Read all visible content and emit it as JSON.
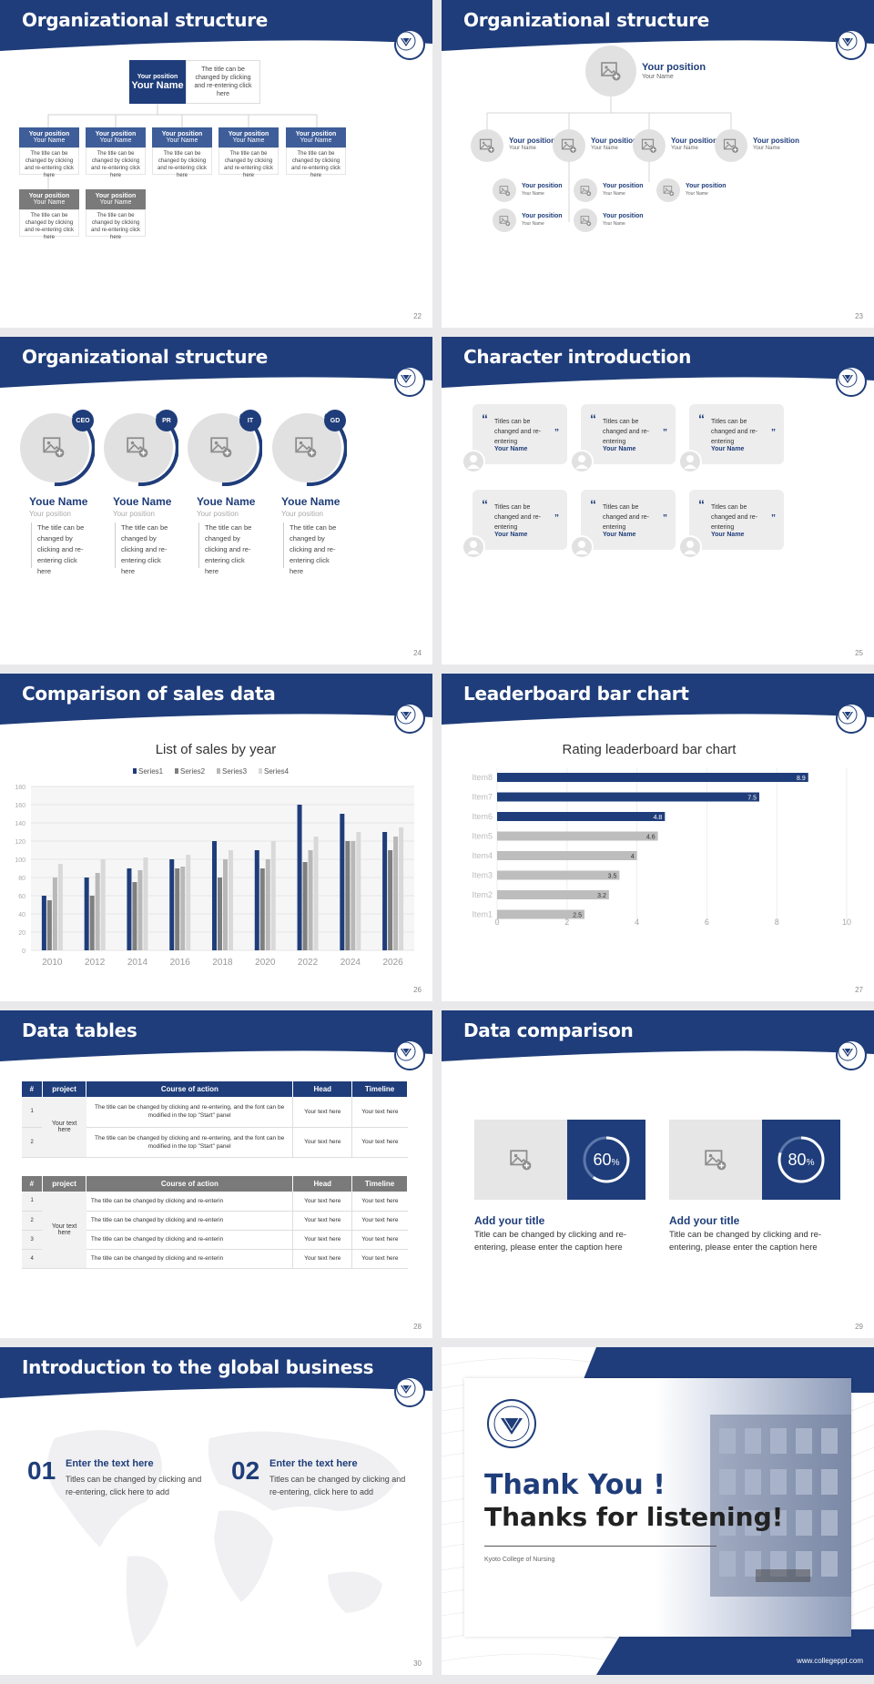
{
  "colors": {
    "navy": "#1f3d7a",
    "gray": "#7a7a7a",
    "light": "#e2e1e1"
  },
  "s22": {
    "title": "Organizational structure",
    "top_position": "Your position",
    "top_name": "Your Name",
    "top_desc": "The title can be changed by clicking and re-entering click here",
    "row1": [
      {
        "pos": "Your position",
        "name": "Your Name"
      },
      {
        "pos": "Your position",
        "name": "Your Name"
      },
      {
        "pos": "Your position",
        "name": "Your Name"
      },
      {
        "pos": "Your position",
        "name": "Your Name"
      },
      {
        "pos": "Your position",
        "name": "Your Name"
      }
    ],
    "row2": [
      {
        "pos": "Your position",
        "name": "Your Name"
      },
      {
        "pos": "Your position",
        "name": "Your Name"
      }
    ],
    "desc": "The title can be changed by clicking and re-entering click here",
    "page": "22"
  },
  "s23": {
    "title": "Organizational structure",
    "top_position": "Your position",
    "top_name": "Your Name",
    "mid": [
      {
        "pos": "Your position",
        "name": "Your Name"
      },
      {
        "pos": "Your position",
        "name": "Your Name"
      },
      {
        "pos": "Your position",
        "name": "Your Name"
      },
      {
        "pos": "Your position",
        "name": "Your Name"
      }
    ],
    "sub": [
      {
        "pos": "Your position",
        "name": "Your Name"
      },
      {
        "pos": "Your position",
        "name": "Your Name"
      },
      {
        "pos": "Your position",
        "name": "Your Name"
      },
      {
        "pos": "Your position",
        "name": "Your Name"
      },
      {
        "pos": "Your position",
        "name": "Your Name"
      },
      {
        "pos": "Your position",
        "name": "Your Name"
      }
    ],
    "page": "23"
  },
  "s24": {
    "title": "Organizational structure",
    "people": [
      {
        "badge": "CEO",
        "name": "Youe Name",
        "pos": "Your position",
        "desc": "The title can be changed by clicking and re-entering click here"
      },
      {
        "badge": "PR",
        "name": "Youe Name",
        "pos": "Your position",
        "desc": "The title can be changed by clicking and re-entering click here"
      },
      {
        "badge": "IT",
        "name": "Youe Name",
        "pos": "Your position",
        "desc": "The title can be changed by clicking and re-entering click here"
      },
      {
        "badge": "GD",
        "name": "Youe Name",
        "pos": "Your position",
        "desc": "The title can be changed by clicking and re-entering click here"
      }
    ],
    "page": "24"
  },
  "s25": {
    "title": "Character introduction",
    "quote": "Titles can be changed and re-entering",
    "name": "Your Name",
    "page": "25"
  },
  "s26": {
    "title": "Comparison of sales data",
    "page": "26"
  },
  "s27": {
    "title": "Leaderboard bar chart",
    "page": "27"
  },
  "s28": {
    "title": "Data tables",
    "headers": [
      "#",
      "project",
      "Course of action",
      "Head",
      "Timeline"
    ],
    "t1_merged": "Your text here",
    "t1_rows": [
      {
        "n": "1",
        "action": "The title can be changed by clicking and re-entering, and the font can be modified in the top \"Start\" panel",
        "head": "Your text here",
        "time": "Your text here"
      },
      {
        "n": "2",
        "action": "The title can be changed by clicking and re-entering, and the font can be modified in the top \"Start\" panel",
        "head": "Your text here",
        "time": "Your text here"
      }
    ],
    "t2_merged": "Your text here",
    "t2_rows": [
      {
        "n": "1",
        "action": "The title can be changed by clicking and re-enterin",
        "head": "Your text here",
        "time": "Your text here"
      },
      {
        "n": "2",
        "action": "The title can be changed by clicking and re-enterin",
        "head": "Your text here",
        "time": "Your text here"
      },
      {
        "n": "3",
        "action": "The title can be changed by clicking and re-enterin",
        "head": "Your text here",
        "time": "Your text here"
      },
      {
        "n": "4",
        "action": "The title can be changed by clicking and re-enterin",
        "head": "Your text here",
        "time": "Your text here"
      }
    ],
    "page": "28"
  },
  "s29": {
    "title": "Data comparison",
    "items": [
      {
        "pct": "60",
        "pct_value": 0.6,
        "heading": "Add your title",
        "body": "Title can be changed by clicking and re-entering, please enter the caption here"
      },
      {
        "pct": "80",
        "pct_value": 0.8,
        "heading": "Add your title",
        "body": "Title can be changed by clicking and re-entering, please enter the caption here"
      }
    ],
    "pct_sign": "%",
    "page": "29"
  },
  "s30": {
    "title": "Introduction to the global business",
    "items": [
      {
        "num": "01",
        "heading": "Enter the text here",
        "body": "Titles can be changed by clicking and re-entering, click here to add"
      },
      {
        "num": "02",
        "heading": "Enter the text here",
        "body": "Titles can be changed by clicking and re-entering, click here to add"
      }
    ],
    "page": "30"
  },
  "s31": {
    "line1": "Thank You !",
    "line2": "Thanks for listening!",
    "school": "Kyoto College of Nursing",
    "url": "www.collegeppt.com"
  },
  "chart_data": [
    {
      "type": "bar",
      "title": "List of sales by year",
      "categories": [
        "2010",
        "2012",
        "2014",
        "2016",
        "2018",
        "2020",
        "2022",
        "2024",
        "2026"
      ],
      "series": [
        {
          "name": "Series1",
          "color": "#1f3d7a",
          "values": [
            60,
            80,
            90,
            100,
            120,
            110,
            160,
            150,
            130
          ]
        },
        {
          "name": "Series2",
          "color": "#7f7f7f",
          "values": [
            55,
            60,
            75,
            90,
            80,
            90,
            97,
            120,
            110
          ]
        },
        {
          "name": "Series3",
          "color": "#b8b8b8",
          "values": [
            80,
            85,
            88,
            92,
            100,
            100,
            110,
            120,
            125
          ]
        },
        {
          "name": "Series4",
          "color": "#d9d9d9",
          "values": [
            95,
            100,
            102,
            105,
            110,
            120,
            125,
            130,
            135
          ]
        }
      ],
      "ylim": [
        0,
        180
      ],
      "yticks": [
        0,
        20,
        40,
        60,
        80,
        100,
        120,
        140,
        160,
        180
      ],
      "legend": "top"
    },
    {
      "type": "bar",
      "orientation": "horizontal",
      "title": "Rating leaderboard bar chart",
      "categories": [
        "Item8",
        "Item7",
        "Item6",
        "Item5",
        "Item4",
        "Item3",
        "Item2",
        "Item1"
      ],
      "values": [
        8.9,
        7.5,
        4.8,
        4.6,
        4,
        3.5,
        3.2,
        2.5
      ],
      "labels": [
        "8.9",
        "7.5",
        "4.8",
        "4.6",
        "4",
        "3.5",
        "3.2",
        "2.5"
      ],
      "highlight_top": 3,
      "xlim": [
        0,
        10
      ],
      "xticks": [
        "0",
        "2",
        "4",
        "6",
        "8",
        "10"
      ]
    }
  ]
}
